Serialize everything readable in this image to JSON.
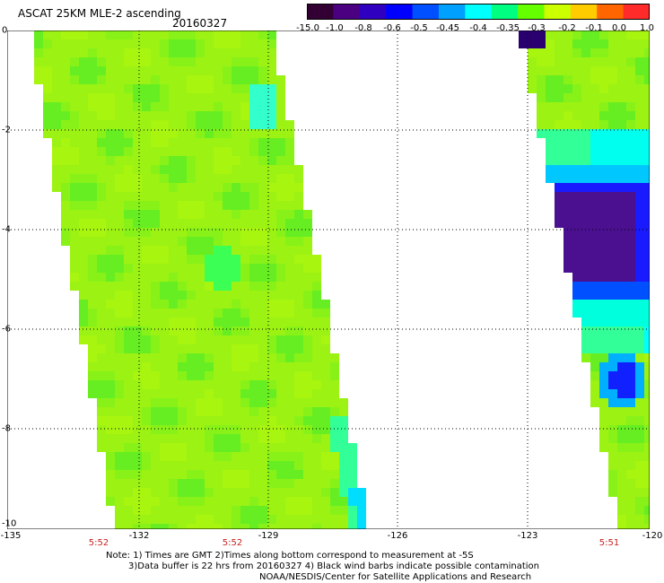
{
  "header": {
    "title": "ASCAT 25KM MLE-2 ascending",
    "date": "20160327"
  },
  "colorbar": {
    "labels": [
      "-15.0",
      "-1.0",
      "-0.8",
      "-0.6",
      "-0.5",
      "-0.45",
      "-0.4",
      "-0.35",
      "-0.3",
      "-0.2",
      "-0.1",
      "0.0",
      "1.0"
    ],
    "colors": [
      "#330033",
      "#4a0080",
      "#3000c0",
      "#0000ff",
      "#0050ff",
      "#00a0ff",
      "#00ffff",
      "#00ff80",
      "#66ff00",
      "#ccff00",
      "#ffcc00",
      "#ff6600",
      "#ff2a2a"
    ]
  },
  "axes": {
    "y_ticks": [
      "0",
      "-2",
      "-4",
      "-6",
      "-8",
      "-10"
    ],
    "x_ticks": [
      "-135",
      "-132",
      "-129",
      "-126",
      "-123",
      "-120"
    ],
    "pass_times": [
      "5:52",
      "5:52",
      "5:51"
    ]
  },
  "notes": {
    "line1": "Note: 1) Times are GMT 2)Times along bottom correspond to measurement at -5S",
    "line2": "3)Data buffer is 22 hrs from 20160327 4) Black wind barbs indicate possible contamination",
    "line3": "NOAA/NESDIS/Center for Satellite Applications and Research"
  }
}
